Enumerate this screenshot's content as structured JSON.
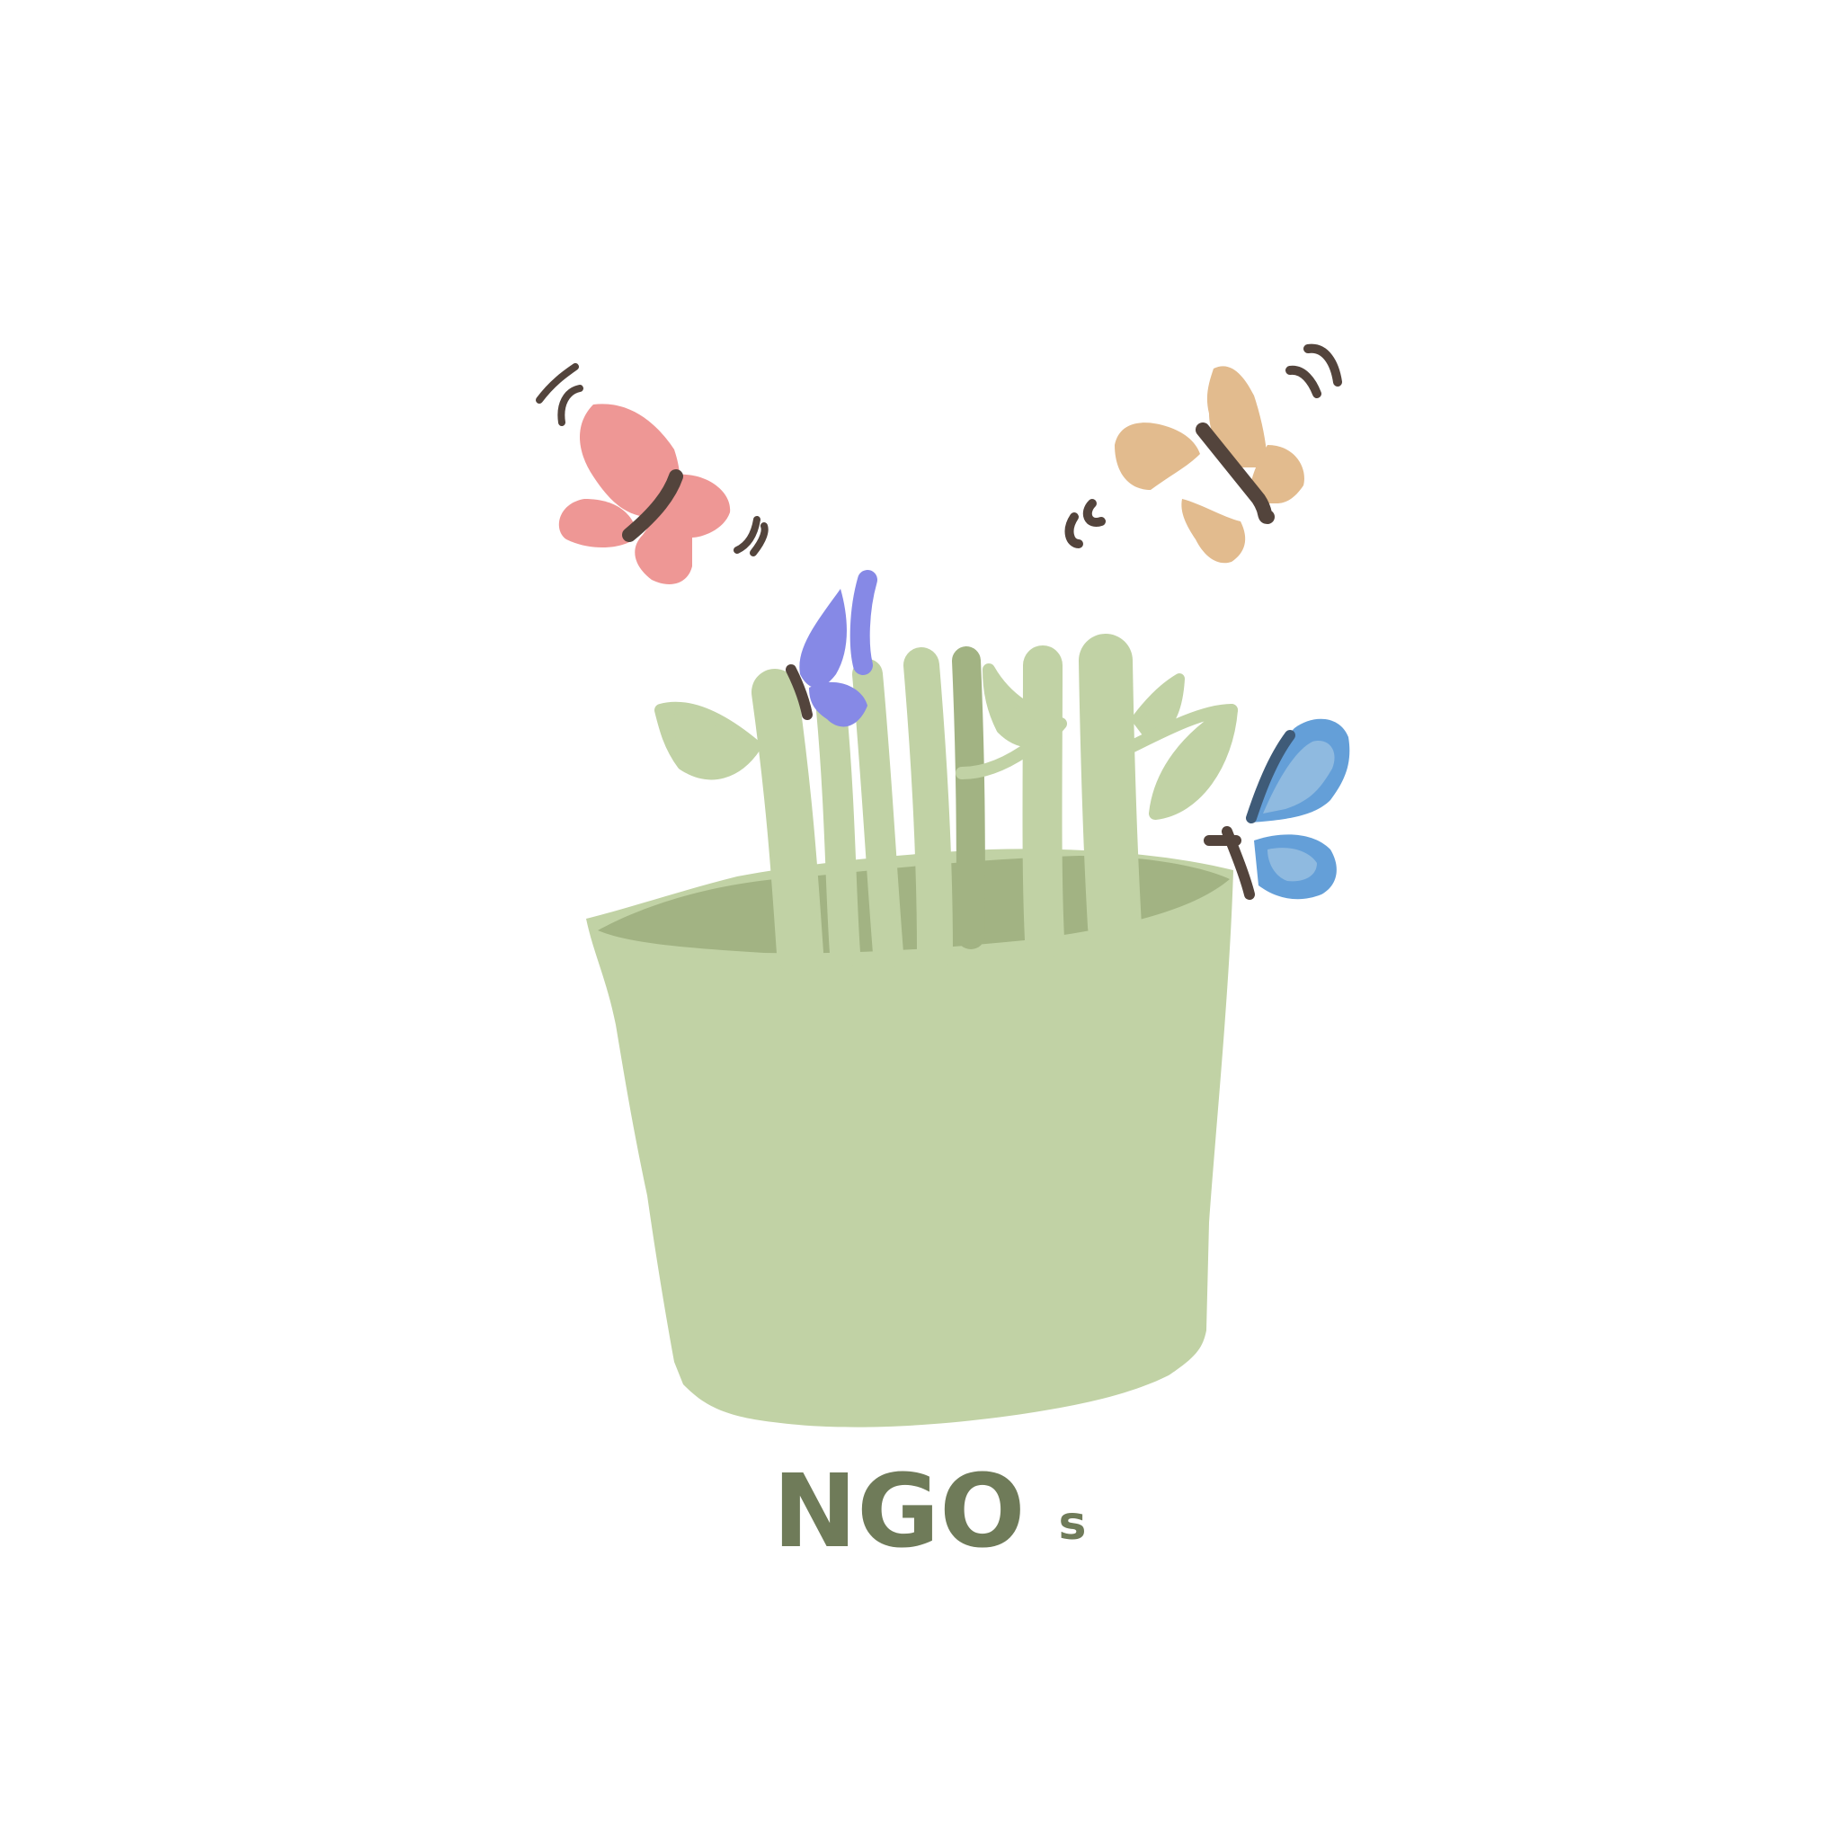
{
  "caption": {
    "main": "NGO",
    "suffix": "s"
  },
  "colors": {
    "background": "#ffffff",
    "pot": "#c1d2a5",
    "pot_rim_inner": "#a2b383",
    "stems": "#c1d2a5",
    "text": "#6f7b59",
    "butterfly_pink": "#ee9795",
    "butterfly_peach": "#e2bb8e",
    "butterfly_purple": "#8689e6",
    "butterfly_blue": "#649fd8",
    "butterfly_blue_light": "#8fbae0",
    "body_dark": "#53443c"
  },
  "elements": {
    "pot": "flower-pot",
    "plants": "grass-stems",
    "butterflies": [
      "pink-butterfly",
      "peach-butterfly",
      "purple-butterfly",
      "blue-butterfly"
    ]
  }
}
